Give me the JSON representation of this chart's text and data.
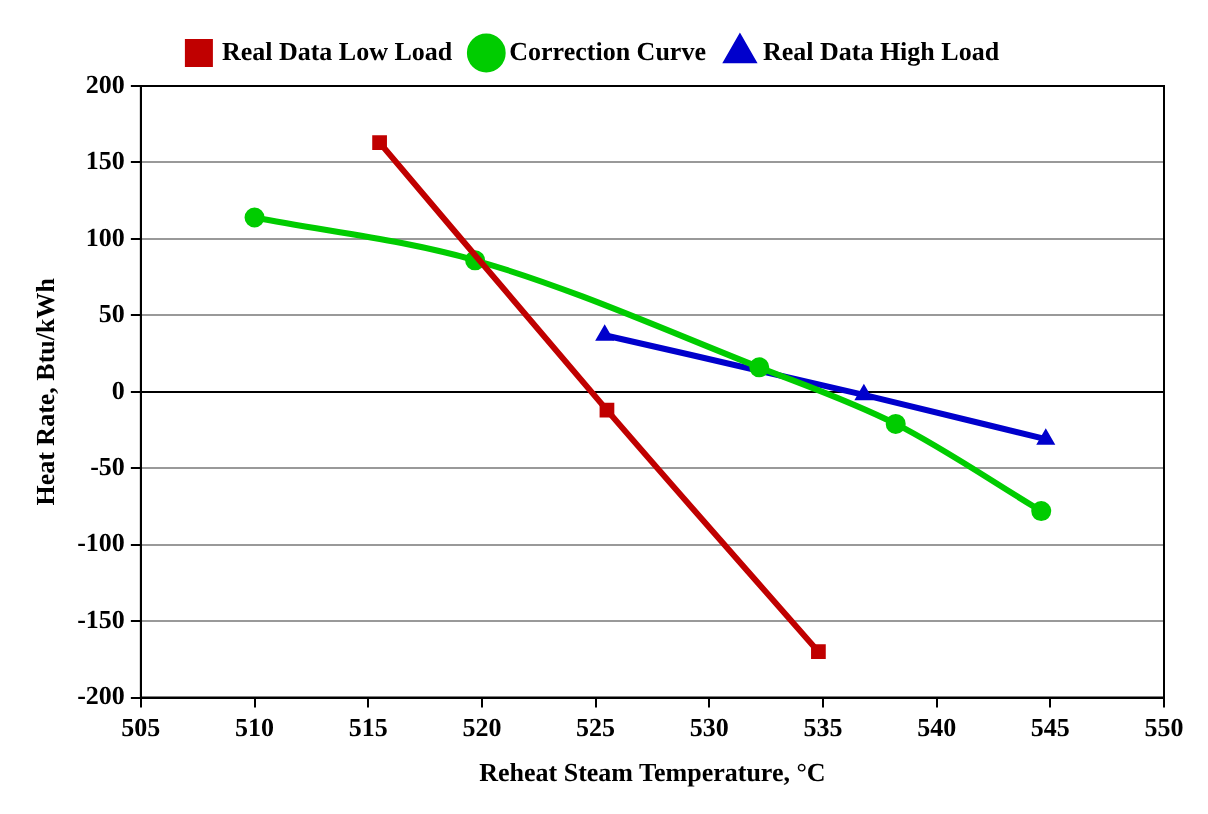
{
  "chart_data": {
    "type": "line",
    "xlabel": "Reheat Steam Temperature, °C",
    "ylabel": "Heat Rate, Btu/kWh",
    "xlim": [
      505,
      550
    ],
    "xticks": [
      505,
      510,
      515,
      520,
      525,
      530,
      535,
      540,
      545,
      550
    ],
    "ylim": [
      -200,
      200
    ],
    "yticks": [
      -200,
      -150,
      -100,
      -50,
      0,
      50,
      100,
      150,
      200
    ],
    "grid": "y",
    "legend": "top",
    "series": [
      {
        "name": "Real Data Low Load",
        "color": "#c00000",
        "marker": "square",
        "x": [
          515.5,
          525.5,
          534.8
        ],
        "values": [
          163,
          -12,
          -170
        ]
      },
      {
        "name": "Correction Curve",
        "color": "#00cc00",
        "marker": "circle",
        "x": [
          510,
          519.7,
          532.2,
          538.2,
          544.6
        ],
        "values": [
          114,
          86,
          16,
          -21,
          -78
        ]
      },
      {
        "name": "Real Data High Load",
        "color": "#0000cc",
        "marker": "triangle",
        "x": [
          525.4,
          536.8,
          544.8
        ],
        "values": [
          37,
          -2,
          -31
        ]
      }
    ]
  }
}
